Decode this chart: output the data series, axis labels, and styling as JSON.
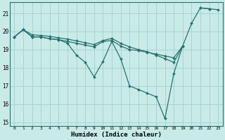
{
  "xlabel": "Humidex (Indice chaleur)",
  "background_color": "#c8ebe8",
  "grid_color": "#a8d4d0",
  "line_color": "#2a7070",
  "x_values": [
    0,
    1,
    2,
    3,
    4,
    5,
    6,
    7,
    8,
    9,
    10,
    11,
    12,
    13,
    14,
    15,
    16,
    17,
    18,
    19,
    20,
    21,
    22,
    23
  ],
  "line1_y": [
    19.7,
    20.1,
    19.7,
    19.7,
    19.6,
    19.55,
    19.35,
    18.7,
    18.3,
    17.5,
    18.35,
    19.45,
    18.5,
    17.0,
    16.8,
    16.6,
    16.4,
    15.2,
    17.7,
    19.2,
    null,
    21.3,
    21.25,
    null
  ],
  "line2_y": [
    19.7,
    20.1,
    19.7,
    19.7,
    19.6,
    19.55,
    19.45,
    19.35,
    19.25,
    19.15,
    19.45,
    19.5,
    19.2,
    19.0,
    18.95,
    18.85,
    18.75,
    18.65,
    18.55,
    19.2,
    null,
    null,
    21.25,
    null
  ],
  "line3_y": [
    19.7,
    20.1,
    19.82,
    19.78,
    19.73,
    19.65,
    19.58,
    19.48,
    19.38,
    19.28,
    19.5,
    19.62,
    19.35,
    19.15,
    19.0,
    18.88,
    18.7,
    18.5,
    18.3,
    19.2,
    20.45,
    21.3,
    21.25,
    21.2
  ],
  "ylim": [
    14.8,
    21.6
  ],
  "yticks": [
    15,
    16,
    17,
    18,
    19,
    20,
    21
  ],
  "xticks": [
    0,
    1,
    2,
    3,
    4,
    5,
    6,
    7,
    8,
    9,
    10,
    11,
    12,
    13,
    14,
    15,
    16,
    17,
    18,
    19,
    20,
    21,
    22,
    23
  ],
  "marker": "D",
  "markersize": 2.0,
  "linewidth": 0.9
}
